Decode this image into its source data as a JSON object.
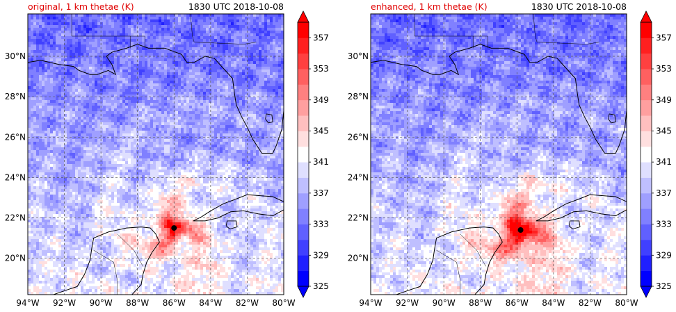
{
  "panels": [
    {
      "id": "original",
      "title_left": "original, 1 km thetae (K)",
      "title_right": "1830 UTC 2018-10-08",
      "title_left_color": "#e00000",
      "storm_center": {
        "lon": -86.0,
        "lat": 21.5
      },
      "core_strength": 0.75
    },
    {
      "id": "enhanced",
      "title_left": "enhanced, 1 km thetae (K)",
      "title_right": "1830 UTC 2018-10-08",
      "title_left_color": "#e00000",
      "storm_center": {
        "lon": -85.8,
        "lat": 21.4
      },
      "core_strength": 1.0
    }
  ],
  "chart_data": {
    "type": "heatmap",
    "variable": "1 km thetae (K)",
    "xlim": [
      -94,
      -80
    ],
    "ylim": [
      18.2,
      32.1
    ],
    "x_ticks": [
      -94,
      -92,
      -90,
      -88,
      -86,
      -84,
      -82,
      -80
    ],
    "x_tick_labels": [
      "94°W",
      "92°W",
      "90°W",
      "88°W",
      "86°W",
      "84°W",
      "82°W",
      "80°W"
    ],
    "y_ticks": [
      20,
      22,
      24,
      26,
      28,
      30
    ],
    "y_tick_labels": [
      "20°N",
      "22°N",
      "24°N",
      "26°N",
      "28°N",
      "30°N"
    ],
    "grid": true,
    "colorbar": {
      "levels": [
        325,
        327,
        329,
        331,
        333,
        335,
        337,
        339,
        341,
        343,
        345,
        347,
        349,
        351,
        353,
        355,
        357,
        359
      ],
      "tick_values": [
        325,
        329,
        333,
        337,
        341,
        345,
        349,
        353,
        357
      ],
      "tick_labels": [
        "325",
        "329",
        "333",
        "337",
        "341",
        "345",
        "349",
        "353",
        "357"
      ],
      "extend": "both",
      "colormap": "bwr",
      "low_color": "#0000ff",
      "high_color": "#ff0000"
    }
  }
}
